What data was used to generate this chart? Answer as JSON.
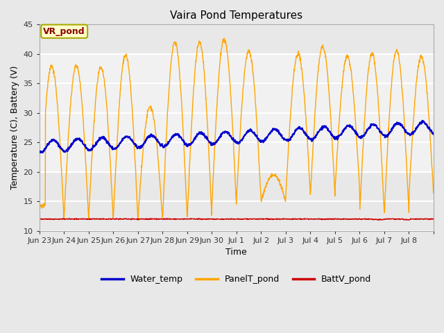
{
  "title": "Vaira Pond Temperatures",
  "xlabel": "Time",
  "ylabel": "Temperature (C), Battery (V)",
  "ylim": [
    10,
    45
  ],
  "yticks": [
    10,
    15,
    20,
    25,
    30,
    35,
    40,
    45
  ],
  "annotation_text": "VR_pond",
  "annotation_color": "#8B0000",
  "annotation_bg": "#FFFFCC",
  "annotation_border": "#AAAA00",
  "water_temp_color": "#0000CC",
  "panel_temp_color": "#FFA500",
  "batt_color": "#CC0000",
  "legend_labels": [
    "Water_temp",
    "PanelT_pond",
    "BattV_pond"
  ],
  "fig_bg": "#E8E8E8",
  "plot_bg": "#E8E8E8",
  "n_days": 16,
  "pts_per_day": 96,
  "xlim_start": 0,
  "xlim_end": 16,
  "tick_positions": [
    0,
    1,
    2,
    3,
    4,
    5,
    6,
    7,
    8,
    9,
    10,
    11,
    12,
    13,
    14,
    15,
    16
  ],
  "tick_labels": [
    "Jun 23",
    "Jun 24",
    "Jun 25",
    "Jun 26",
    "Jun 27",
    "Jun 28",
    "Jun 29",
    "Jun 30",
    "Jul 1",
    "Jul 2",
    "Jul 3",
    "Jul 4",
    "Jul 5",
    "Jul 6",
    "Jul 7",
    "Jul 8",
    ""
  ],
  "shaded_band": [
    20,
    40
  ],
  "shaded_color": "#FFFFFF",
  "shaded_alpha": 0.4,
  "grid_color": "#FFFFFF",
  "grid_lw": 1.5,
  "water_lw": 1.5,
  "panel_lw": 1.0,
  "batt_lw": 1.0,
  "title_fontsize": 11,
  "label_fontsize": 9,
  "tick_fontsize": 8,
  "legend_fontsize": 9
}
